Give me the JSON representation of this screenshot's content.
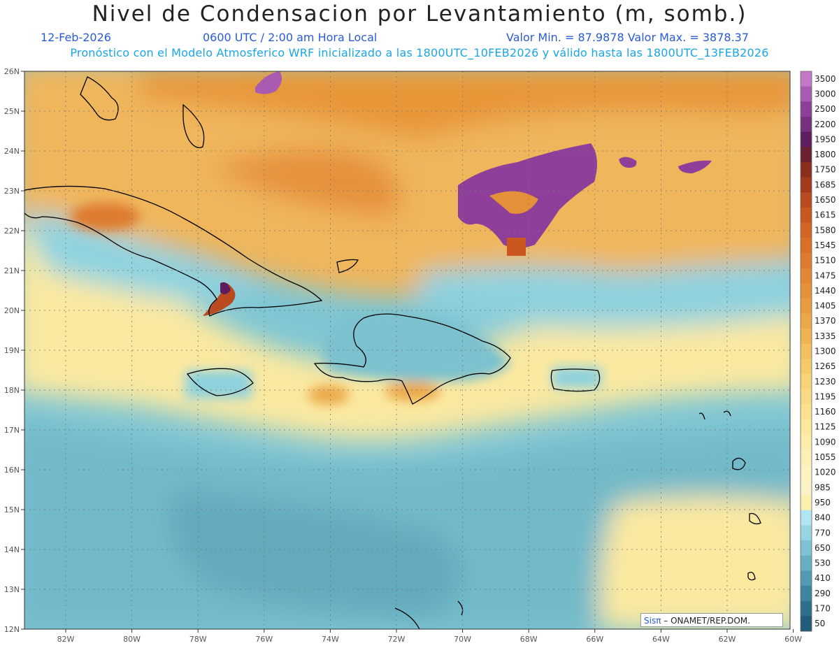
{
  "header": {
    "title": "Nivel de Condensacion por Levantamiento (m, somb.)",
    "date": "12-Feb-2026",
    "time": "0600 UTC / 2:00 am Hora Local",
    "range": "Valor Min. = 87.9878  Valor Max. = 3878.37",
    "model_info": "Pronóstico con el Modelo Atmosferico WRF inicializado a las 1800UTC_10FEB2026 y válido hasta las  1800UTC_13FEB2026"
  },
  "map": {
    "lat_labels": [
      "26N",
      "25N",
      "24N",
      "23N",
      "22N",
      "21N",
      "20N",
      "19N",
      "18N",
      "17N",
      "16N",
      "15N",
      "14N",
      "13N",
      "12N"
    ],
    "lon_labels": [
      "82W",
      "80W",
      "78W",
      "76W",
      "74W",
      "72W",
      "70W",
      "68W",
      "66W",
      "64W",
      "62W",
      "60W"
    ]
  },
  "colorbar": {
    "levels": [
      "3500",
      "3000",
      "2500",
      "2200",
      "1950",
      "1800",
      "1750",
      "1685",
      "1650",
      "1615",
      "1580",
      "1545",
      "1510",
      "1475",
      "1440",
      "1405",
      "1370",
      "1335",
      "1300",
      "1265",
      "1230",
      "1195",
      "1160",
      "1125",
      "1090",
      "1055",
      "1020",
      "985",
      "950",
      "840",
      "770",
      "650",
      "530",
      "410",
      "290",
      "170",
      "50"
    ],
    "colors": [
      "#c377c6",
      "#a95ab1",
      "#8e3f9a",
      "#76307f",
      "#5d1d5e",
      "#6b2132",
      "#8a2e1d",
      "#a43a1c",
      "#ba4a1f",
      "#c9571f",
      "#d46424",
      "#da6f28",
      "#de7a2f",
      "#e18634",
      "#e5913a",
      "#e89c40",
      "#eba848",
      "#efb452",
      "#f2c05e",
      "#f4ca6a",
      "#f6d377",
      "#f8db84",
      "#fae290",
      "#fbe89c",
      "#fcecaa",
      "#fdf0b6",
      "#fdf3c0",
      "#fbf3c8",
      "#fcf0b0",
      "#b0e6ef",
      "#96d5e2",
      "#7ec2d3",
      "#68aec3",
      "#5399b2",
      "#3f849f",
      "#2e708c",
      "#1f5d78"
    ]
  },
  "credit": {
    "brand": "Sisπ",
    "text": " – ONAMET/REP.DOM."
  }
}
